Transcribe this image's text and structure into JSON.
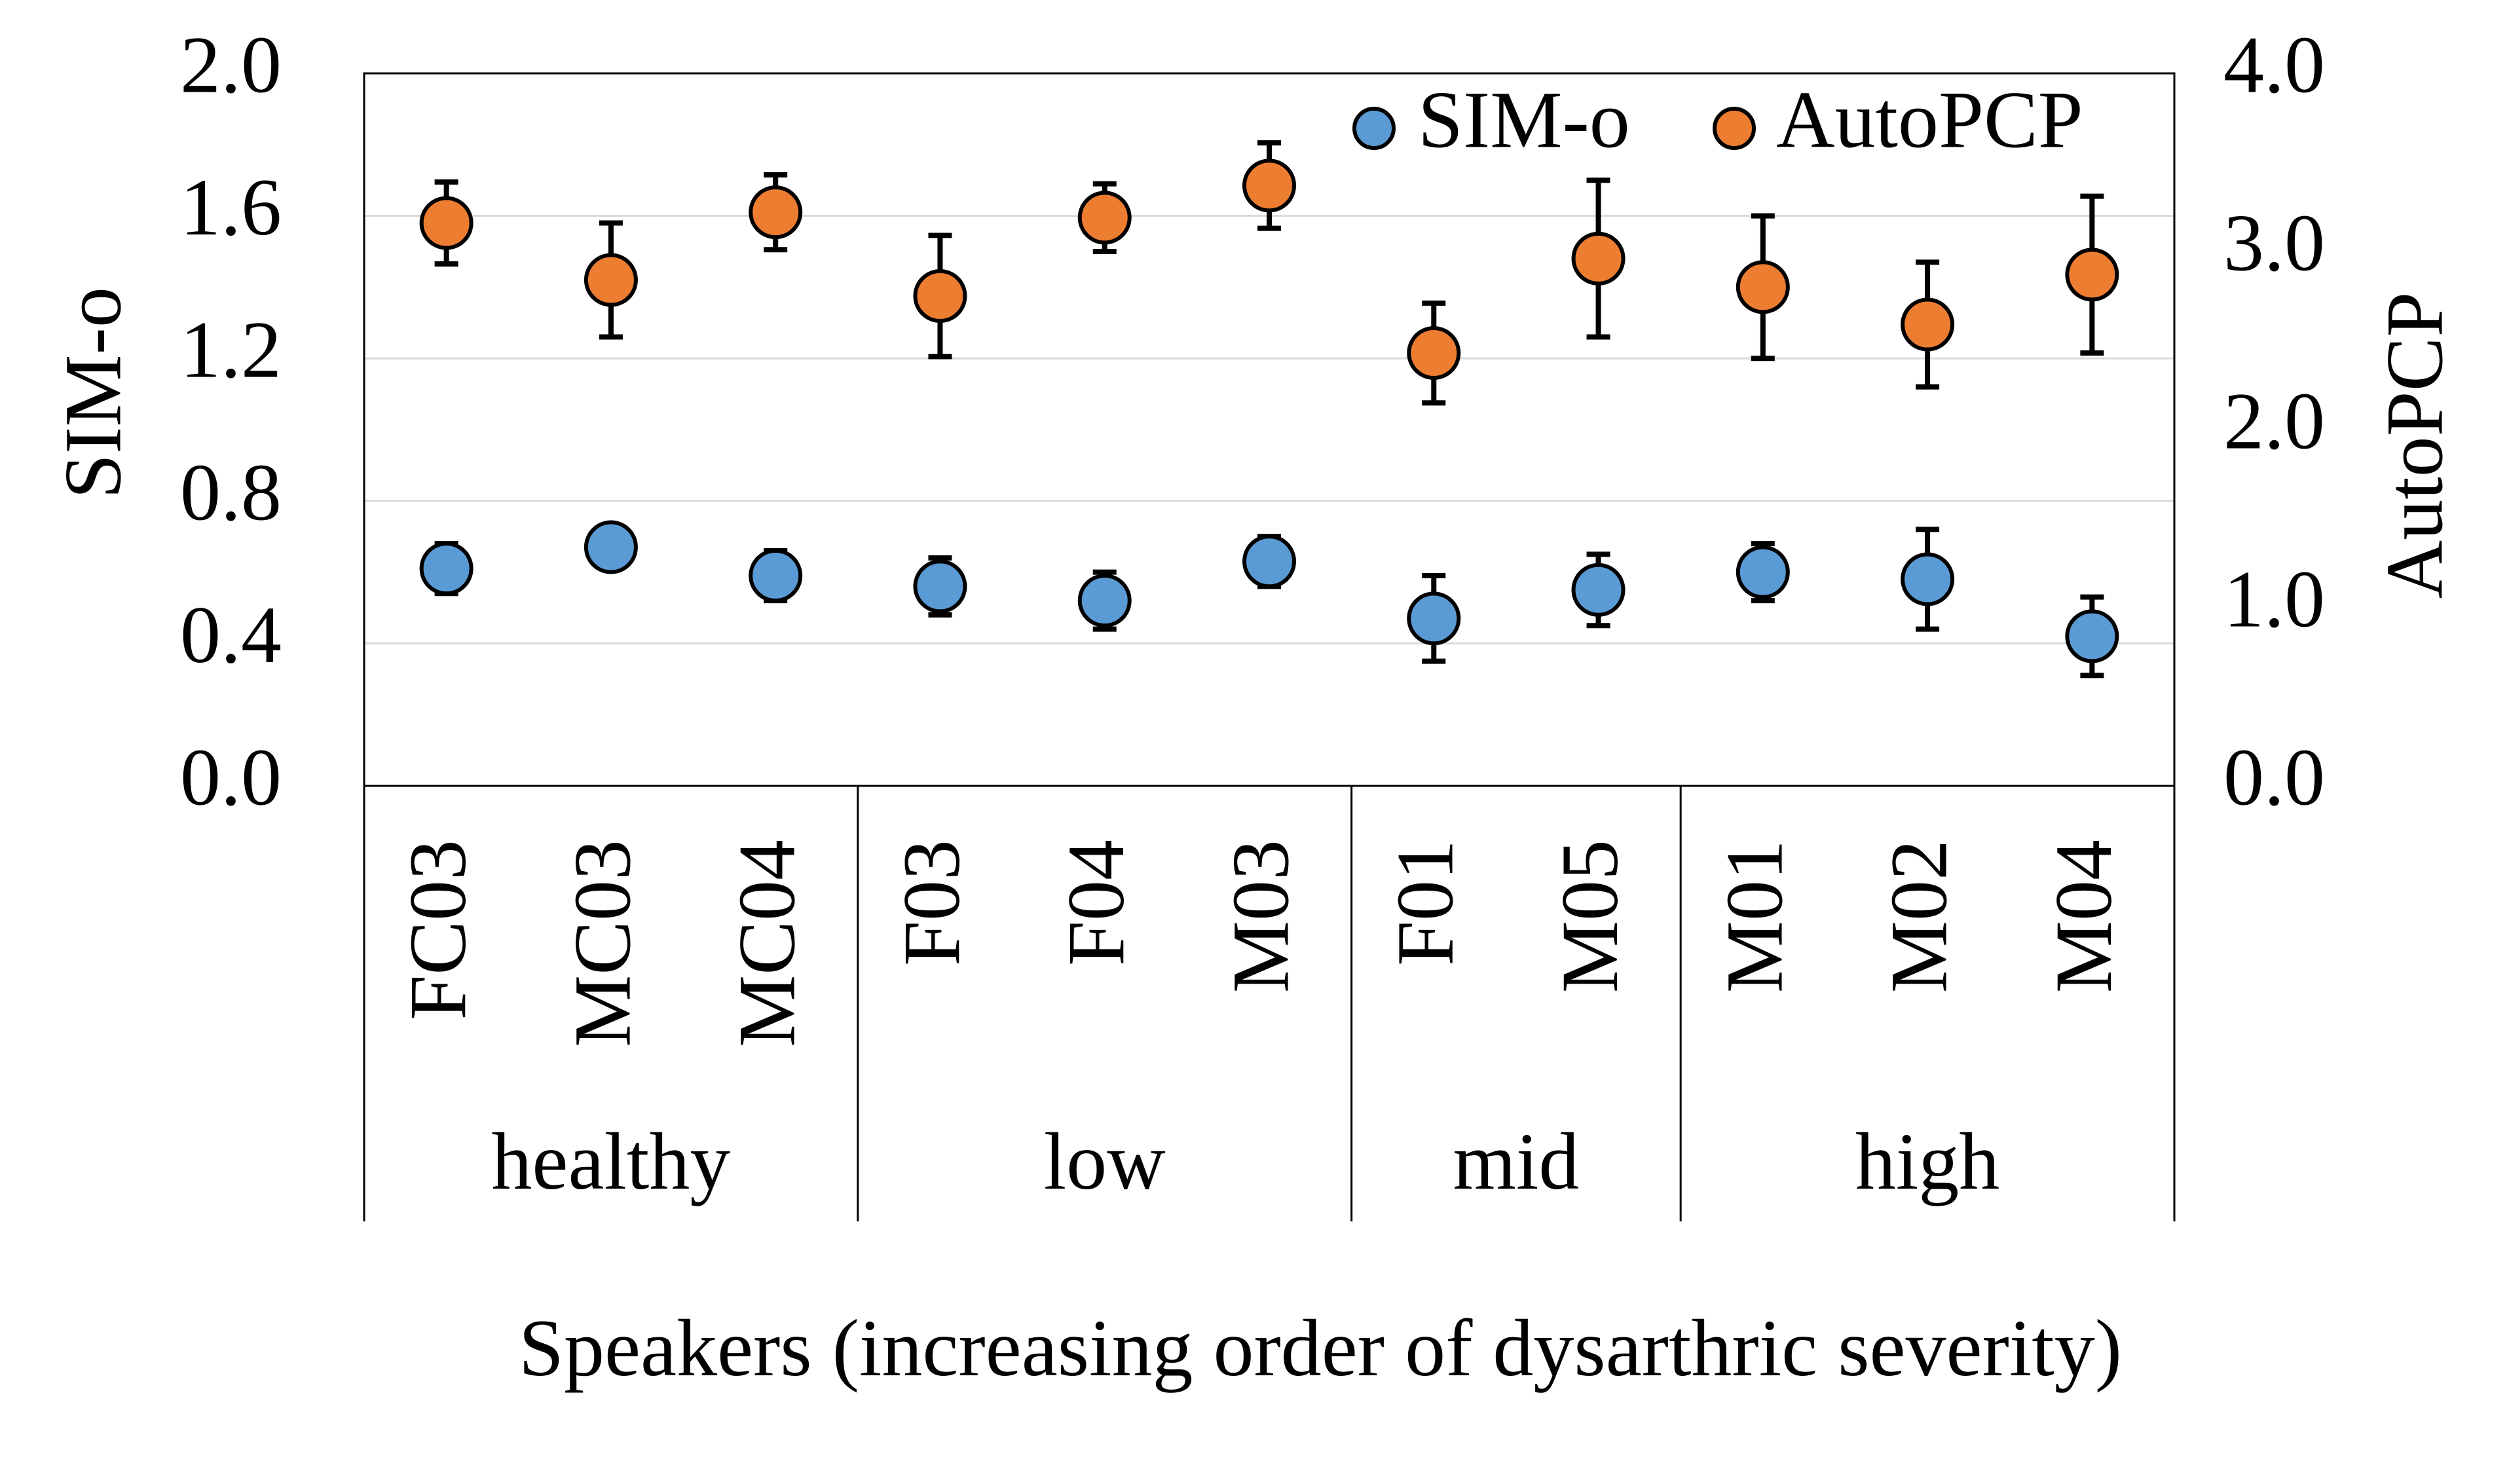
{
  "chart_data": {
    "type": "scatter",
    "title": "",
    "xlabel": "Speakers (increasing order of dysarthric severity)",
    "ylabel_left": "SIM-o",
    "ylabel_right": "AutoPCP",
    "ylim_left": [
      0,
      2.0
    ],
    "ylim_right": [
      0,
      4.0
    ],
    "yticks_left": [
      "0.0",
      "0.4",
      "0.8",
      "1.2",
      "1.6",
      "2.0"
    ],
    "yticks_right": [
      "0.0",
      "1.0",
      "2.0",
      "3.0",
      "4.0"
    ],
    "grid": true,
    "legend_position": "top-right",
    "categories": [
      "FC03",
      "MC03",
      "MC04",
      "F03",
      "F04",
      "M03",
      "F01",
      "M05",
      "M01",
      "M02",
      "M04"
    ],
    "groups": [
      {
        "label": "healthy",
        "count": 3
      },
      {
        "label": "low",
        "count": 3
      },
      {
        "label": "mid",
        "count": 2
      },
      {
        "label": "high",
        "count": 3
      }
    ],
    "series": [
      {
        "name": "SIM-o",
        "axis": "left",
        "color": "#5B9BD5",
        "values": [
          0.61,
          0.67,
          0.59,
          0.56,
          0.52,
          0.63,
          0.47,
          0.55,
          0.6,
          0.58,
          0.42
        ],
        "errors": [
          0.07,
          0.05,
          0.07,
          0.08,
          0.08,
          0.07,
          0.12,
          0.1,
          0.08,
          0.14,
          0.11
        ]
      },
      {
        "name": "AutoPCP",
        "axis": "right",
        "color": "#ED7D31",
        "values": [
          3.16,
          2.84,
          3.22,
          2.75,
          3.19,
          3.37,
          2.43,
          2.96,
          2.8,
          2.59,
          2.87
        ],
        "errors": [
          0.23,
          0.32,
          0.21,
          0.34,
          0.19,
          0.24,
          0.28,
          0.44,
          0.4,
          0.35,
          0.44
        ]
      }
    ]
  }
}
